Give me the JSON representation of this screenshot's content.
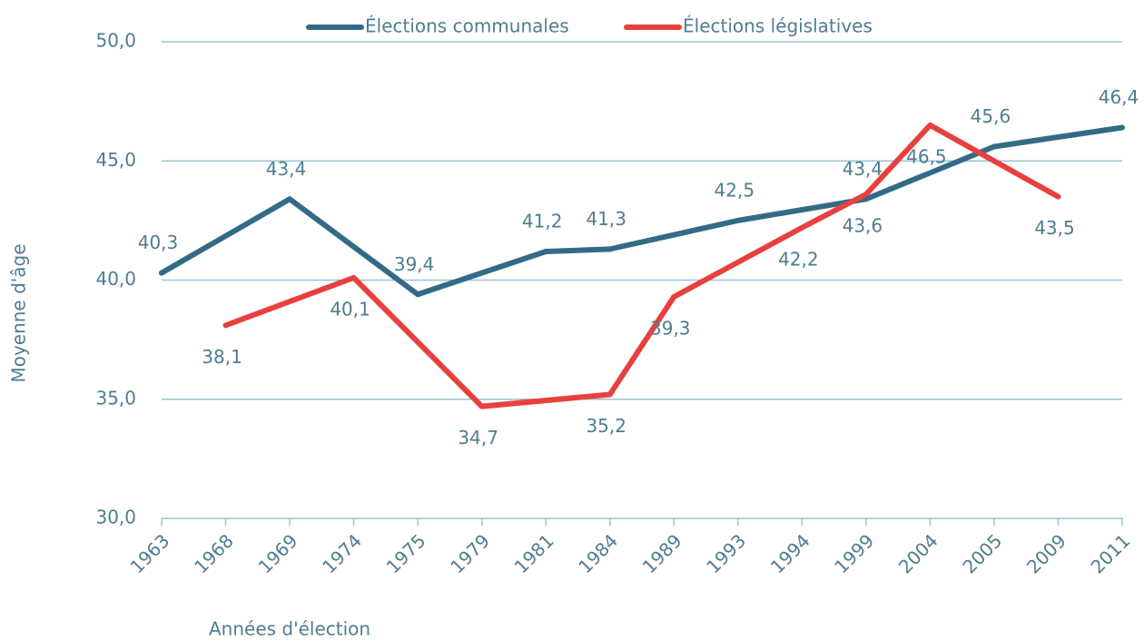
{
  "chart_data": {
    "type": "line",
    "x_label": "Années d'élection",
    "y_label": "Moyenne d'âge",
    "categories": [
      "1963",
      "1968",
      "1969",
      "1974",
      "1975",
      "1979",
      "1981",
      "1984",
      "1989",
      "1993",
      "1994",
      "1999",
      "2004",
      "2005",
      "2009",
      "2011"
    ],
    "series": [
      {
        "name": "Élections communales",
        "color": "#336b87",
        "values": [
          40.3,
          null,
          43.4,
          null,
          39.4,
          null,
          41.2,
          41.3,
          null,
          42.5,
          null,
          43.4,
          null,
          45.6,
          null,
          46.4
        ],
        "value_labels": [
          "40,3",
          null,
          "43,4",
          null,
          "39,4",
          null,
          "41,2",
          "41,3",
          null,
          "42,5",
          null,
          "43,4",
          null,
          "45,6",
          null,
          "46,4"
        ]
      },
      {
        "name": "Élections législatives",
        "color": "#e8403f",
        "values": [
          null,
          38.1,
          null,
          40.1,
          null,
          34.7,
          null,
          35.2,
          39.3,
          null,
          42.2,
          43.6,
          46.5,
          null,
          43.5,
          null
        ],
        "value_labels": [
          null,
          "38,1",
          null,
          "40,1",
          null,
          "34,7",
          null,
          "35,2",
          "39,3",
          null,
          "42,2",
          "43,6",
          "46,5",
          null,
          "43,5",
          null
        ]
      }
    ],
    "ylim": [
      30,
      50
    ],
    "yticks": [
      {
        "value": 30,
        "label": "30,0"
      },
      {
        "value": 35,
        "label": "35,0"
      },
      {
        "value": 40,
        "label": "40,0"
      },
      {
        "value": 45,
        "label": "45,0"
      },
      {
        "value": 50,
        "label": "50,0"
      }
    ],
    "grid": true,
    "legend": "top",
    "connect_gaps": true
  }
}
